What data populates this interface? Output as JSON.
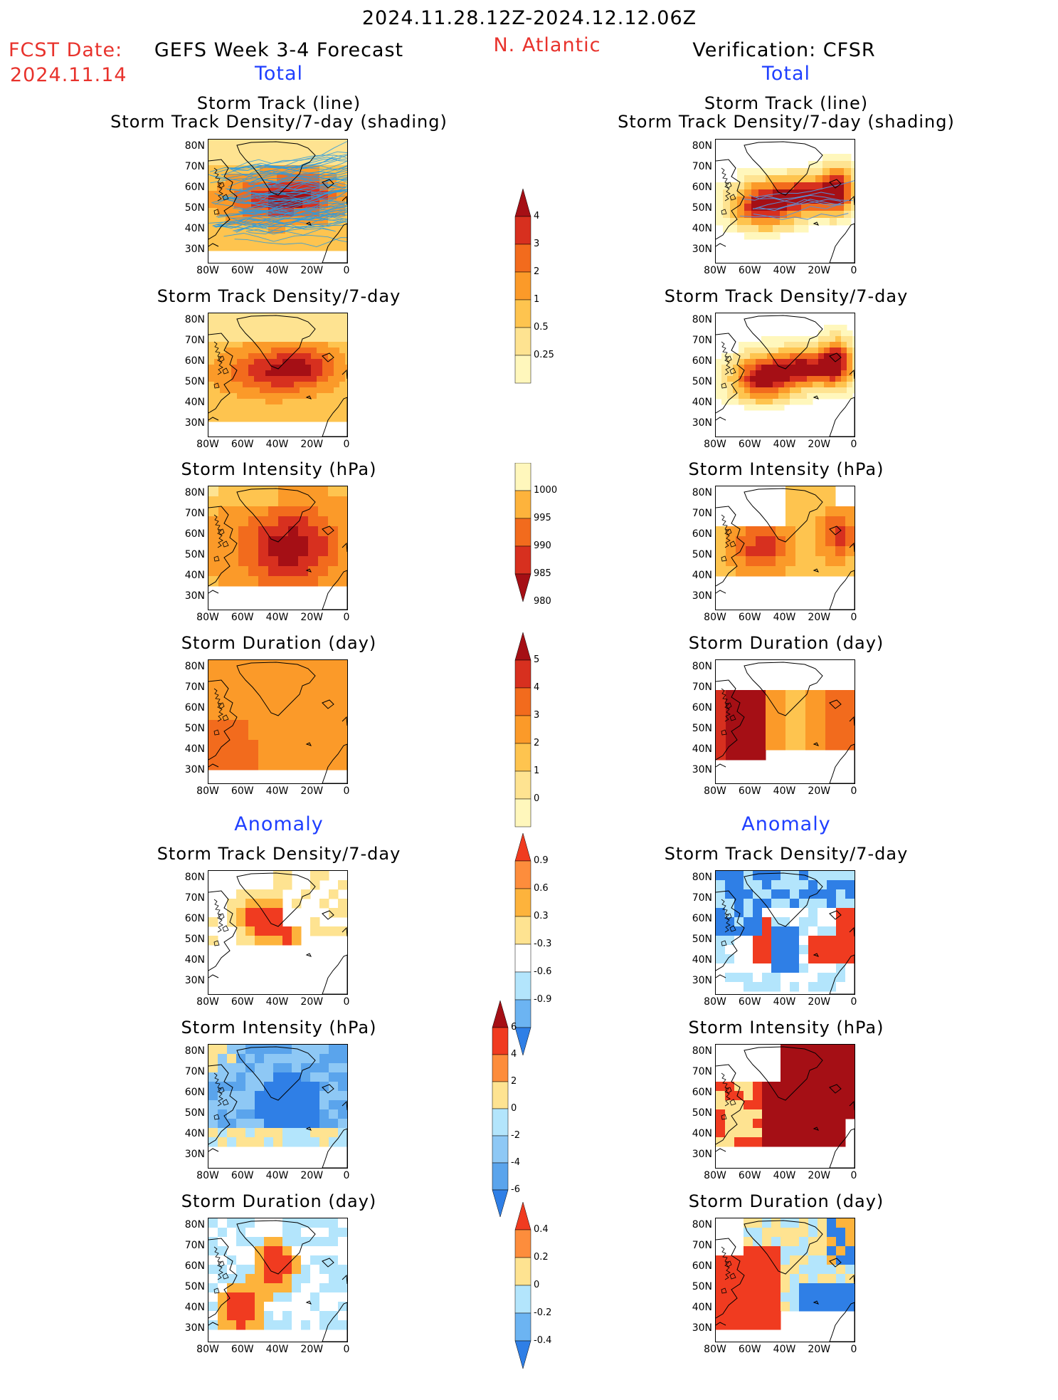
{
  "header": {
    "date_range": "2024.11.28.12Z-2024.12.12.06Z",
    "fcst_label": "FCST Date:",
    "fcst_date": "2024.11.14",
    "model_title": "GEFS Week 3-4 Forecast",
    "region": "N. Atlantic",
    "verification": "Verification: CFSR",
    "total_left": "Total",
    "total_right": "Total",
    "anomaly_left": "Anomaly",
    "anomaly_right": "Anomaly"
  },
  "axes": {
    "lat_labels": [
      "80N",
      "70N",
      "60N",
      "50N",
      "40N",
      "30N"
    ],
    "lon_labels": [
      "80W",
      "60W",
      "40W",
      "20W",
      "0"
    ]
  },
  "panels": {
    "track_line_left": {
      "title1": "Storm Track (line)",
      "title2": "Storm Track Density/7-day (shading)"
    },
    "track_line_right": {
      "title1": "Storm Track (line)",
      "title2": "Storm Track Density/7-day (shading)"
    },
    "density_left": {
      "title": "Storm Track Density/7-day"
    },
    "density_right": {
      "title": "Storm Track Density/7-day"
    },
    "intensity_left": {
      "title": "Storm Intensity (hPa)"
    },
    "intensity_right": {
      "title": "Storm Intensity (hPa)"
    },
    "duration_left": {
      "title": "Storm Duration (day)"
    },
    "duration_right": {
      "title": "Storm Duration (day)"
    },
    "anom_density_left": {
      "title": "Storm Track Density/7-day"
    },
    "anom_density_right": {
      "title": "Storm Track Density/7-day"
    },
    "anom_intensity_left": {
      "title": "Storm Intensity (hPa)"
    },
    "anom_intensity_right": {
      "title": "Storm Intensity (hPa)"
    },
    "anom_duration_left": {
      "title": "Storm Duration (day)"
    },
    "anom_duration_right": {
      "title": "Storm Duration (day)"
    }
  },
  "colorbars": {
    "density": {
      "labels": [
        "4",
        "3",
        "2",
        "1",
        "0.5",
        "0.25"
      ],
      "colors": [
        "#a50f15",
        "#d7301f",
        "#f26b1d",
        "#fb9a29",
        "#fec44f",
        "#fee391",
        "#fff7bc"
      ]
    },
    "intensity": {
      "labels": [
        "1000",
        "995",
        "990",
        "985",
        "980"
      ],
      "colors": [
        "#fff7bc",
        "#fdb33c",
        "#f26b1d",
        "#d7301f",
        "#a50f15"
      ]
    },
    "duration": {
      "labels": [
        "5",
        "4",
        "3",
        "2",
        "1",
        "0"
      ],
      "colors": [
        "#a50f15",
        "#d7301f",
        "#f26b1d",
        "#fb9a29",
        "#fec44f",
        "#fee391",
        "#fff7bc"
      ]
    },
    "anom_density": {
      "labels": [
        "0.9",
        "0.6",
        "0.3",
        "-0.3",
        "-0.6",
        "-0.9"
      ],
      "colors": [
        "#f03b20",
        "#fd8d3c",
        "#fdb33c",
        "#fee391",
        "#ffffff",
        "#b3e5fc",
        "#6cb4f2",
        "#2f7fe6"
      ]
    },
    "anom_intensity": {
      "labels": [
        "6",
        "4",
        "2",
        "0",
        "-2",
        "-4",
        "-6"
      ],
      "colors": [
        "#a50f15",
        "#f03b20",
        "#fd8d3c",
        "#fee391",
        "#b3e5fc",
        "#8ec8f5",
        "#5aa4ec",
        "#2f7fe6"
      ]
    },
    "anom_duration": {
      "labels": [
        "0.4",
        "0.2",
        "0",
        "-0.2",
        "-0.4"
      ],
      "colors": [
        "#f03b20",
        "#fd8d3c",
        "#fee391",
        "#b3e5fc",
        "#6cb4f2",
        "#2f7fe6"
      ]
    }
  },
  "colors": {
    "accent_red": "#e8322c",
    "accent_blue": "#1f3fff",
    "track_line": "#2b9be0",
    "track_line_verif": "#5a8fd6"
  }
}
